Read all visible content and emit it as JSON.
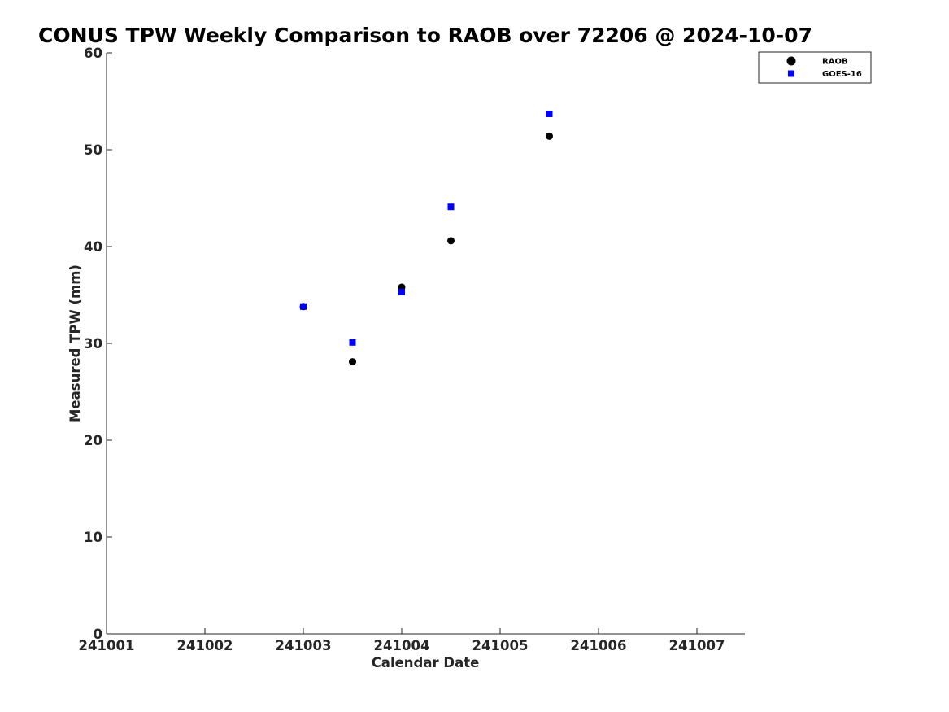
{
  "chart_data": {
    "type": "scatter",
    "title": "CONUS TPW Weekly Comparison to RAOB over 72206 @ 2024-10-07",
    "xlabel": "Calendar Date",
    "ylabel": "Measured TPW (mm)",
    "x_tick_labels": [
      "241001",
      "241002",
      "241003",
      "241004",
      "241005",
      "241006",
      "241007"
    ],
    "xlim": [
      0,
      6.5
    ],
    "ylim": [
      0,
      60
    ],
    "y_ticks": [
      0,
      10,
      20,
      30,
      40,
      50,
      60
    ],
    "grid": false,
    "legend_position": "top-right (outside plot)",
    "series": [
      {
        "name": "RAOB",
        "marker": "circle",
        "color": "#000000",
        "points": [
          {
            "x": 2.0,
            "y": 33.8
          },
          {
            "x": 2.5,
            "y": 28.1
          },
          {
            "x": 3.0,
            "y": 35.8
          },
          {
            "x": 3.5,
            "y": 40.6
          },
          {
            "x": 4.5,
            "y": 51.4
          }
        ]
      },
      {
        "name": "GOES-16",
        "marker": "square",
        "color": "#0000ff",
        "points": [
          {
            "x": 2.0,
            "y": 33.8
          },
          {
            "x": 2.5,
            "y": 30.1
          },
          {
            "x": 3.0,
            "y": 35.3
          },
          {
            "x": 3.5,
            "y": 44.1
          },
          {
            "x": 4.5,
            "y": 53.7
          }
        ]
      }
    ]
  }
}
